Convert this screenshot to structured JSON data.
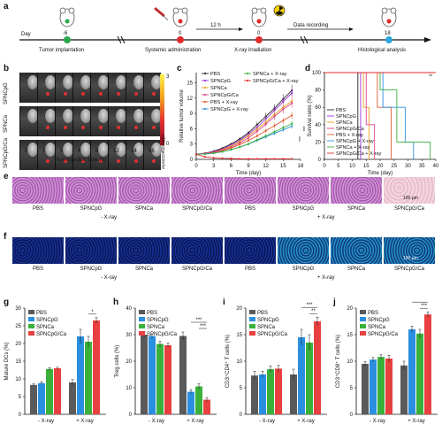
{
  "panels": {
    "a": "a",
    "b": "b",
    "c": "c",
    "d": "d",
    "e": "e",
    "f": "f",
    "g": "g",
    "h": "h",
    "i": "i",
    "j": "j"
  },
  "timeline": {
    "day_label": "Day",
    "days": [
      "-6",
      "0",
      "0",
      "18"
    ],
    "interval": "12 h",
    "events": [
      "Tumor implantation",
      "Systemic administration",
      "X-ray irradiation",
      "Data recording",
      "Histological analysis"
    ],
    "colors": [
      "#2aa84a",
      "#e02b2b",
      "#e02b2b",
      "#2aa8e0"
    ]
  },
  "panel_b": {
    "row_labels": [
      "SPNCpG",
      "SPNCa",
      "SPNCpG/Ca"
    ],
    "colorbar_max": "3",
    "colorbar_min": "0",
    "colorbar_label": "×10⁵ p/sec/cm²/sr",
    "time_points": [
      "0",
      "1",
      "2",
      "4",
      "8",
      "12",
      "24",
      "36"
    ],
    "xlabel": "Post-injection time (h)"
  },
  "panel_c": {
    "type": "line",
    "ylabel": "Relative tumor volume",
    "xlabel": "Time (day)",
    "x": [
      0,
      1.5,
      3,
      4.5,
      6,
      7.5,
      9,
      10.5,
      12,
      13.5,
      15,
      16.5
    ],
    "xticks": [
      "0",
      "3",
      "6",
      "9",
      "12",
      "15",
      "18"
    ],
    "yticks": [
      "0",
      "3",
      "6",
      "9",
      "12",
      "15"
    ],
    "ylim": [
      0,
      17
    ],
    "series": [
      {
        "name": "PBS",
        "color": "#222222",
        "values": [
          1,
          1.2,
          1.6,
          2.2,
          3.0,
          4.0,
          5.2,
          6.8,
          8.4,
          10.0,
          11.8,
          13.5
        ]
      },
      {
        "name": "SPNCpG",
        "color": "#9b30d9",
        "values": [
          1,
          1.2,
          1.5,
          2.0,
          2.8,
          3.7,
          4.9,
          6.3,
          7.9,
          9.6,
          11.3,
          13.0
        ]
      },
      {
        "name": "SPNCa",
        "color": "#e6a21a",
        "values": [
          1,
          1.1,
          1.4,
          1.9,
          2.6,
          3.5,
          4.6,
          5.9,
          7.3,
          8.8,
          10.2,
          11.4
        ]
      },
      {
        "name": "SPNCpG/Ca",
        "color": "#e0408a",
        "values": [
          1,
          1.1,
          1.4,
          1.8,
          2.4,
          3.2,
          4.2,
          5.5,
          6.9,
          8.4,
          9.8,
          11.0
        ]
      },
      {
        "name": "PBS + X-ray",
        "color": "#e05a2a",
        "values": [
          1,
          1.1,
          1.3,
          1.7,
          2.2,
          2.9,
          3.7,
          4.6,
          5.6,
          6.6,
          7.6,
          8.6
        ]
      },
      {
        "name": "SPNCpG + X-ray",
        "color": "#2a8fe0",
        "values": [
          1,
          1.05,
          1.2,
          1.5,
          1.9,
          2.4,
          3.0,
          3.7,
          4.4,
          5.1,
          5.8,
          6.5
        ]
      },
      {
        "name": "SPNCa + X-ray",
        "color": "#3ab03a",
        "values": [
          1,
          1.05,
          1.2,
          1.5,
          1.9,
          2.4,
          3.0,
          3.8,
          4.6,
          5.4,
          6.2,
          7.0
        ]
      },
      {
        "name": "SPNCpG/Ca + X-ray",
        "color": "#e02b2b",
        "values": [
          1,
          0.5,
          0.3,
          0.2,
          0.15,
          0.1,
          0.1,
          0.1,
          0.1,
          0.1,
          0.1,
          0.1
        ]
      }
    ],
    "annotations": [
      "***",
      "***"
    ]
  },
  "panel_d": {
    "type": "line",
    "ylabel": "Survival rates (%)",
    "xlabel": "Time (day)",
    "xticks": [
      "0",
      "5",
      "10",
      "15",
      "20",
      "25",
      "30",
      "35",
      "40"
    ],
    "yticks": [
      "0",
      "20",
      "40",
      "60",
      "80",
      "100"
    ],
    "xlim": [
      0,
      40
    ],
    "ylim": [
      0,
      100
    ],
    "annotation": "**",
    "series": [
      {
        "name": "PBS",
        "color": "#222222",
        "steps": [
          [
            0,
            100
          ],
          [
            12,
            100
          ],
          [
            12,
            0
          ]
        ]
      },
      {
        "name": "SPNCpG",
        "color": "#9b30d9",
        "steps": [
          [
            0,
            100
          ],
          [
            13,
            100
          ],
          [
            13,
            0
          ]
        ]
      },
      {
        "name": "SPNCa",
        "color": "#e6a21a",
        "steps": [
          [
            0,
            100
          ],
          [
            14,
            100
          ],
          [
            14,
            60
          ],
          [
            16,
            60
          ],
          [
            16,
            0
          ]
        ]
      },
      {
        "name": "SPNCpG/Ca",
        "color": "#e0408a",
        "steps": [
          [
            0,
            100
          ],
          [
            15,
            100
          ],
          [
            15,
            40
          ],
          [
            18,
            40
          ],
          [
            18,
            0
          ]
        ]
      },
      {
        "name": "PBS + X-ray",
        "color": "#e05a2a",
        "steps": [
          [
            0,
            100
          ],
          [
            19,
            100
          ],
          [
            19,
            60
          ],
          [
            24,
            60
          ],
          [
            24,
            0
          ]
        ]
      },
      {
        "name": "SPNCpG + X-ray",
        "color": "#2a8fe0",
        "steps": [
          [
            0,
            100
          ],
          [
            21,
            100
          ],
          [
            21,
            60
          ],
          [
            29,
            60
          ],
          [
            29,
            20
          ],
          [
            32,
            20
          ],
          [
            32,
            0
          ]
        ]
      },
      {
        "name": "SPNCa + X-ray",
        "color": "#3ab03a",
        "steps": [
          [
            0,
            100
          ],
          [
            20,
            100
          ],
          [
            20,
            80
          ],
          [
            26,
            80
          ],
          [
            26,
            20
          ],
          [
            38,
            20
          ],
          [
            38,
            0
          ]
        ]
      },
      {
        "name": "SPNCpG/Ca + X-ray",
        "color": "#e02b2b",
        "steps": [
          [
            0,
            100
          ],
          [
            40,
            100
          ]
        ]
      }
    ]
  },
  "panel_e": {
    "labels": [
      "PBS",
      "SPNCpG",
      "SPNCa",
      "SPNCpG/Ca",
      "PBS",
      "SPNCpG",
      "SPNCa",
      "SPNCpG/Ca"
    ],
    "group_left": "- X-ray",
    "group_right": "+ X-ray",
    "scalebar": "100 μm"
  },
  "panel_f": {
    "labels": [
      "PBS",
      "SPNCpG",
      "SPNCa",
      "SPNCpG/Ca",
      "PBS",
      "SPNCpG",
      "SPNCa",
      "SPNCpG/Ca"
    ],
    "group_left": "- X-ray",
    "group_right": "+ X-ray",
    "scalebar": "100 μm"
  },
  "chart_data": [
    {
      "type": "bar",
      "panel": "g",
      "ylabel": "Mature DCs (%)",
      "ylim": [
        0,
        30
      ],
      "yticks": [
        "0",
        "5",
        "10",
        "15",
        "20",
        "25",
        "30"
      ],
      "categories": [
        "- X-ray",
        "+ X-ray"
      ],
      "series": [
        {
          "name": "PBS",
          "color": "#5a5a5a",
          "values": [
            8.3,
            9.0
          ]
        },
        {
          "name": "SPNCpG",
          "color": "#2a8fe0",
          "values": [
            8.8,
            22.0
          ]
        },
        {
          "name": "SPNCa",
          "color": "#3ab03a",
          "values": [
            12.8,
            20.5
          ]
        },
        {
          "name": "SPNCpG/Ca",
          "color": "#e84040",
          "values": [
            13.0,
            26.5
          ]
        }
      ],
      "errors": [
        [
          0.3,
          0.8
        ],
        [
          0.4,
          2.0
        ],
        [
          0.4,
          1.5
        ],
        [
          0.3,
          0.8
        ]
      ],
      "sig": [
        "*"
      ]
    },
    {
      "type": "bar",
      "panel": "h",
      "ylabel": "Treg cells (%)",
      "ylim": [
        0,
        40
      ],
      "yticks": [
        "0",
        "10",
        "20",
        "30",
        "40"
      ],
      "categories": [
        "- X-ray",
        "+ X-ray"
      ],
      "series": [
        {
          "name": "PBS",
          "color": "#5a5a5a",
          "values": [
            30,
            29.5
          ]
        },
        {
          "name": "SPNCpG",
          "color": "#2a8fe0",
          "values": [
            29.5,
            8.5
          ]
        },
        {
          "name": "SPNCa",
          "color": "#3ab03a",
          "values": [
            26.5,
            10.5
          ]
        },
        {
          "name": "SPNCpG/Ca",
          "color": "#e84040",
          "values": [
            26.0,
            5.5
          ]
        }
      ],
      "errors": [
        [
          1.0,
          1.5
        ],
        [
          0.8,
          0.8
        ],
        [
          1.0,
          1.0
        ],
        [
          0.8,
          0.8
        ]
      ],
      "sig": [
        "***",
        "***"
      ]
    },
    {
      "type": "bar",
      "panel": "i",
      "ylabel": "CD3⁺CD4⁺ T cells (%)",
      "ylim": [
        0,
        20
      ],
      "yticks": [
        "0",
        "5",
        "10",
        "15",
        "20"
      ],
      "categories": [
        "- X-ray",
        "+ X-ray"
      ],
      "series": [
        {
          "name": "PBS",
          "color": "#5a5a5a",
          "values": [
            7.3,
            7.5
          ]
        },
        {
          "name": "SPNCpG",
          "color": "#2a8fe0",
          "values": [
            7.5,
            14.5
          ]
        },
        {
          "name": "SPNCa",
          "color": "#3ab03a",
          "values": [
            8.5,
            13.5
          ]
        },
        {
          "name": "SPNCpG/Ca",
          "color": "#e84040",
          "values": [
            8.6,
            17.5
          ]
        }
      ],
      "errors": [
        [
          0.8,
          1.0
        ],
        [
          0.6,
          1.5
        ],
        [
          0.6,
          1.5
        ],
        [
          0.6,
          0.8
        ]
      ],
      "sig": [
        "**",
        "***"
      ]
    },
    {
      "type": "bar",
      "panel": "j",
      "ylabel": "CD3⁺CD8⁺ T cells (%)",
      "ylim": [
        0,
        20
      ],
      "yticks": [
        "0",
        "5",
        "10",
        "15",
        "20"
      ],
      "categories": [
        "- X-ray",
        "+ X-ray"
      ],
      "series": [
        {
          "name": "PBS",
          "color": "#5a5a5a",
          "values": [
            9.5,
            9.2
          ]
        },
        {
          "name": "SPNCpG",
          "color": "#2a8fe0",
          "values": [
            10.3,
            16.0
          ]
        },
        {
          "name": "SPNCa",
          "color": "#3ab03a",
          "values": [
            10.8,
            15.2
          ]
        },
        {
          "name": "SPNCpG/Ca",
          "color": "#e84040",
          "values": [
            10.5,
            18.8
          ]
        }
      ],
      "errors": [
        [
          0.4,
          0.8
        ],
        [
          0.4,
          0.6
        ],
        [
          0.4,
          0.8
        ],
        [
          0.6,
          0.5
        ]
      ],
      "sig": [
        "***",
        "***"
      ]
    }
  ]
}
